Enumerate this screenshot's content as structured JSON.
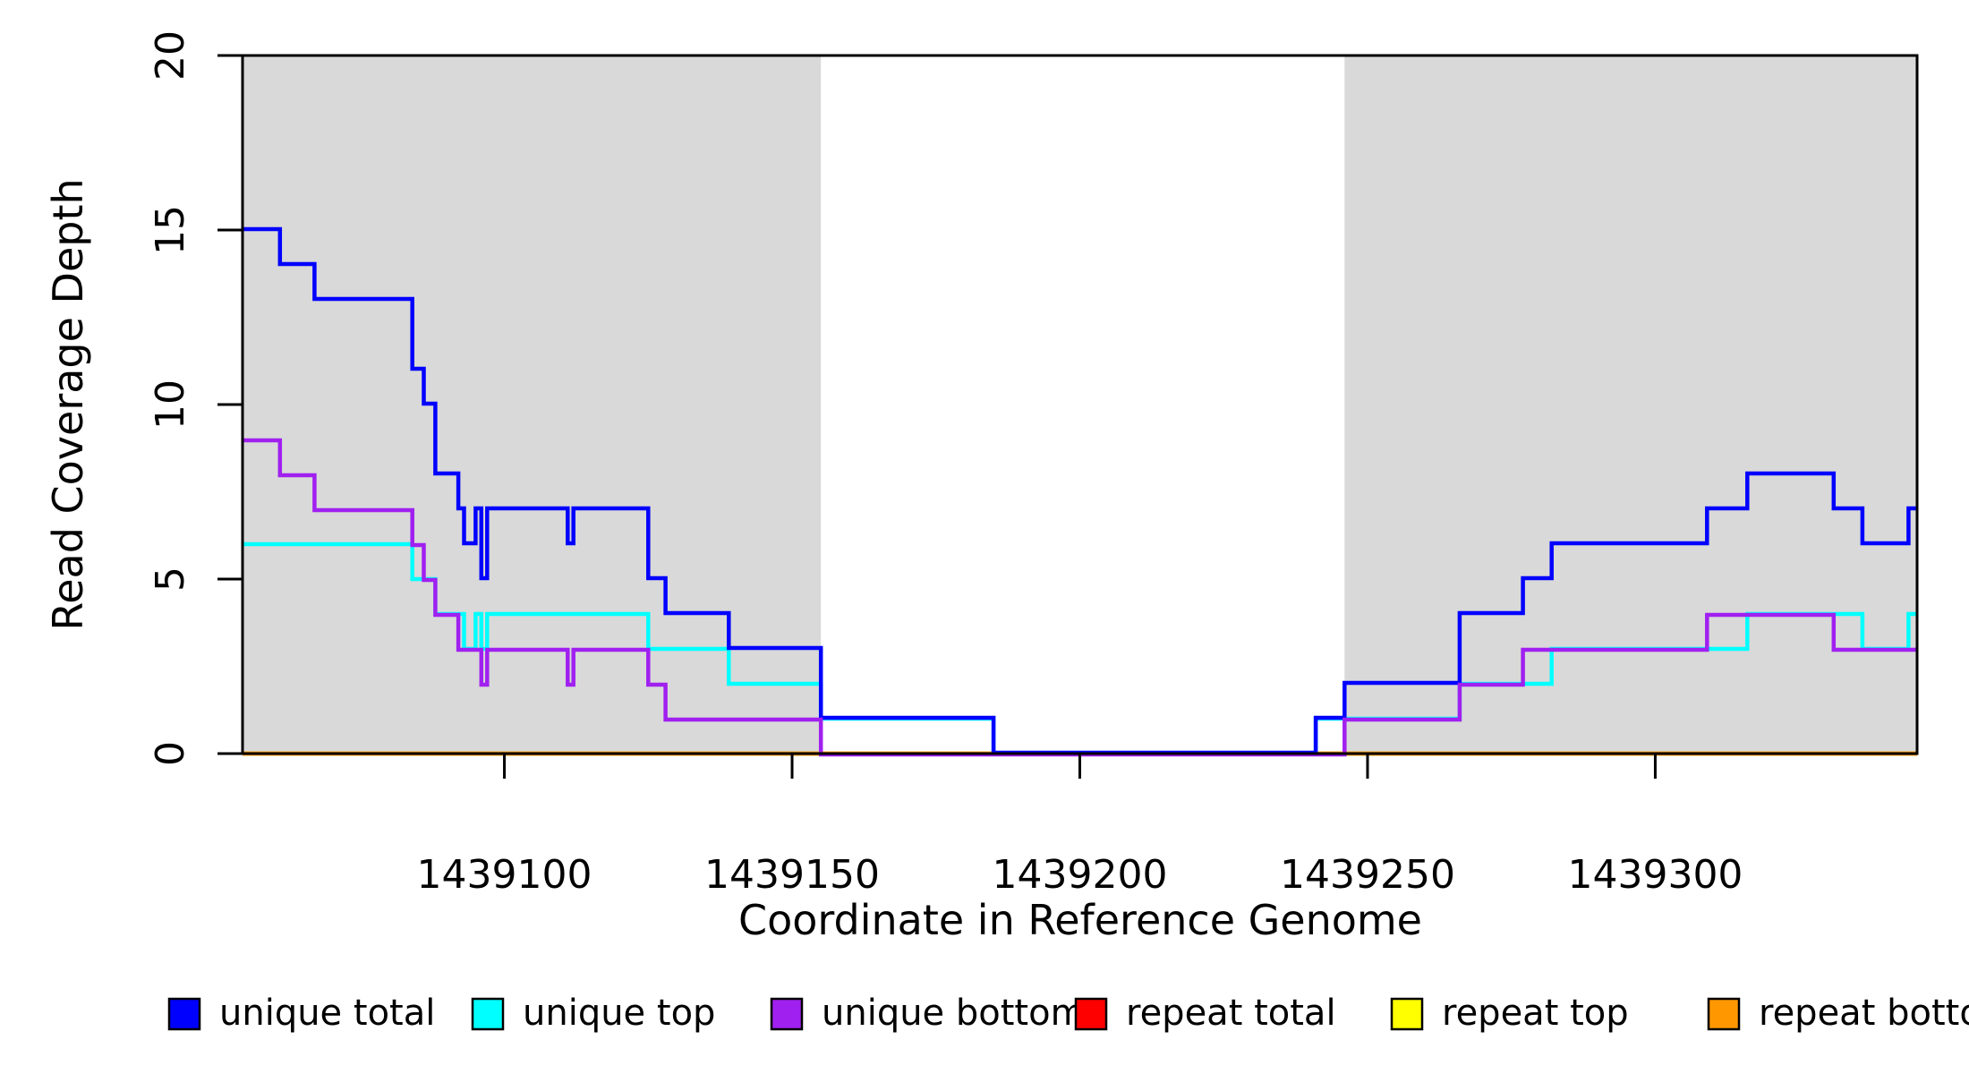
{
  "figure": {
    "background": "#ffffff",
    "shade_color": "#d9d9d9",
    "axis_color": "#000000"
  },
  "chart_data": {
    "type": "line",
    "subtype": "step-after-coverage-plot",
    "title": "",
    "xlabel": "Coordinate in Reference Genome",
    "ylabel": "Read Coverage Depth",
    "xlim": [
      1439054.5,
      1439345.5
    ],
    "ylim": [
      0,
      20
    ],
    "x_ticks": [
      1439100,
      1439150,
      1439200,
      1439250,
      1439300
    ],
    "x_tick_labels": [
      "1439100",
      "1439150",
      "1439200",
      "1439250",
      "1439300"
    ],
    "y_ticks": [
      0,
      5,
      10,
      15,
      20
    ],
    "y_tick_labels": [
      "0",
      "5",
      "10",
      "15",
      "20"
    ],
    "grid": false,
    "legend_position": "bottom-horizontal",
    "shaded_regions": [
      {
        "x0": 1439054.5,
        "x1": 1439155,
        "color": "#d9d9d9"
      },
      {
        "x0": 1439246,
        "x1": 1439345.5,
        "color": "#d9d9d9"
      }
    ],
    "draw_order": [
      "repeat total",
      "repeat top",
      "repeat bottom",
      "unique top",
      "unique total",
      "unique bottom"
    ],
    "series": [
      {
        "name": "unique total",
        "color": "#0000ff",
        "points": [
          [
            1439054.5,
            15
          ],
          [
            1439061,
            14
          ],
          [
            1439067,
            13
          ],
          [
            1439084,
            11
          ],
          [
            1439086,
            10
          ],
          [
            1439088,
            8
          ],
          [
            1439092,
            7
          ],
          [
            1439093,
            6
          ],
          [
            1439095,
            7
          ],
          [
            1439096,
            5
          ],
          [
            1439097,
            7
          ],
          [
            1439111,
            6
          ],
          [
            1439112,
            7
          ],
          [
            1439125,
            5
          ],
          [
            1439128,
            4
          ],
          [
            1439139,
            3
          ],
          [
            1439155,
            1
          ],
          [
            1439185,
            0
          ],
          [
            1439241,
            1
          ],
          [
            1439246,
            2
          ],
          [
            1439266,
            4
          ],
          [
            1439277,
            5
          ],
          [
            1439282,
            6
          ],
          [
            1439309,
            7
          ],
          [
            1439316,
            8
          ],
          [
            1439331,
            7
          ],
          [
            1439336,
            6
          ],
          [
            1439344,
            7
          ]
        ]
      },
      {
        "name": "unique top",
        "color": "#00ffff",
        "points": [
          [
            1439054.5,
            6
          ],
          [
            1439084,
            5
          ],
          [
            1439088,
            4
          ],
          [
            1439093,
            3
          ],
          [
            1439095,
            4
          ],
          [
            1439096,
            3
          ],
          [
            1439097,
            4
          ],
          [
            1439125,
            3
          ],
          [
            1439139,
            2
          ],
          [
            1439155,
            1
          ],
          [
            1439185,
            0
          ],
          [
            1439241,
            1
          ],
          [
            1439266,
            2
          ],
          [
            1439282,
            3
          ],
          [
            1439316,
            4
          ],
          [
            1439336,
            3
          ],
          [
            1439344,
            4
          ]
        ]
      },
      {
        "name": "unique bottom",
        "color": "#a020f0",
        "points": [
          [
            1439054.5,
            9
          ],
          [
            1439061,
            8
          ],
          [
            1439067,
            7
          ],
          [
            1439084,
            6
          ],
          [
            1439086,
            5
          ],
          [
            1439088,
            4
          ],
          [
            1439092,
            3
          ],
          [
            1439096,
            2
          ],
          [
            1439097,
            3
          ],
          [
            1439111,
            2
          ],
          [
            1439112,
            3
          ],
          [
            1439125,
            2
          ],
          [
            1439128,
            1
          ],
          [
            1439155,
            0
          ],
          [
            1439246,
            1
          ],
          [
            1439266,
            2
          ],
          [
            1439277,
            3
          ],
          [
            1439309,
            4
          ],
          [
            1439331,
            3
          ]
        ]
      },
      {
        "name": "repeat total",
        "color": "#ff0000",
        "points": [
          [
            1439054.5,
            0
          ]
        ]
      },
      {
        "name": "repeat top",
        "color": "#ffff00",
        "points": [
          [
            1439054.5,
            0
          ]
        ]
      },
      {
        "name": "repeat bottom",
        "color": "#ff9800",
        "points": [
          [
            1439054.5,
            0
          ]
        ]
      }
    ]
  },
  "legend": {
    "items": [
      {
        "label": "unique total",
        "color": "#0000ff"
      },
      {
        "label": "unique top",
        "color": "#00ffff"
      },
      {
        "label": "unique bottom",
        "color": "#a020f0"
      },
      {
        "label": "repeat total",
        "color": "#ff0000"
      },
      {
        "label": "repeat top",
        "color": "#ffff00"
      },
      {
        "label": "repeat bottom",
        "color": "#ff9800"
      }
    ]
  }
}
